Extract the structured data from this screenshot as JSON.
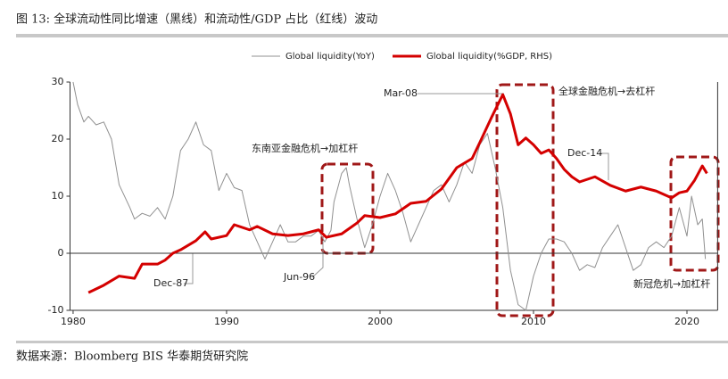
{
  "chart_data": {
    "type": "line",
    "title": "图 13:   全球流动性同比增速（黑线）和流动性/GDP 占比（红线）波动",
    "source": "数据来源：Bloomberg   BIS   华泰期货研究院",
    "xlim": [
      1979.8,
      2022
    ],
    "xticks": [
      1980,
      1990,
      2000,
      2010,
      2020
    ],
    "ylim": [
      -10,
      30
    ],
    "yticks": [
      -10,
      0,
      10,
      20,
      30
    ],
    "y2lim": [
      -10,
      30
    ],
    "series": [
      {
        "name": "Global liquidity(YoY)",
        "color": "#909090",
        "x": [
          1980,
          1980.3,
          1980.7,
          1981,
          1981.5,
          1982,
          1982.5,
          1983,
          1983.7,
          1984,
          1984.5,
          1985,
          1985.5,
          1986,
          1986.5,
          1987,
          1987.5,
          1988,
          1988.5,
          1989,
          1989.5,
          1990,
          1990.5,
          1991,
          1991.5,
          1992,
          1992.5,
          1993,
          1993.5,
          1994,
          1994.5,
          1995,
          1995.5,
          1996,
          1996.4,
          1996.8,
          1997,
          1997.5,
          1997.8,
          1998,
          1998.5,
          1999,
          1999.5,
          2000,
          2000.5,
          2001,
          2001.5,
          2002,
          2002.5,
          2003,
          2003.5,
          2004,
          2004.5,
          2005,
          2005.5,
          2006,
          2006.5,
          2007,
          2007.5,
          2008,
          2008.5,
          2009,
          2009.5,
          2010,
          2010.5,
          2011,
          2011.5,
          2012,
          2012.5,
          2013,
          2013.5,
          2014,
          2014.5,
          2015,
          2015.5,
          2016,
          2016.5,
          2017,
          2017.5,
          2018,
          2018.5,
          2019,
          2019.5,
          2020,
          2020.3,
          2020.7,
          2021,
          2021.2
        ],
        "values": [
          30,
          26,
          23,
          24,
          22.5,
          23,
          20,
          12,
          8,
          6,
          7,
          6.5,
          8,
          6,
          10,
          18,
          20,
          23,
          19,
          18,
          11,
          14,
          11.5,
          11,
          5,
          2,
          -1,
          2,
          5,
          2,
          2,
          3,
          3,
          4,
          2,
          4,
          9,
          14,
          15,
          12,
          6,
          1,
          5,
          10,
          14,
          11,
          7,
          2,
          5,
          8,
          11,
          12,
          9,
          12,
          16,
          14,
          19,
          21,
          15,
          8,
          -3,
          -9,
          -10,
          -4,
          0,
          2.5,
          2.5,
          2,
          0,
          -3,
          -2,
          -2.5,
          1,
          3,
          5,
          1,
          -3,
          -2,
          1,
          2,
          1,
          3,
          8,
          3,
          10,
          5,
          6,
          -1
        ]
      },
      {
        "name": "Global liquidity(%GDP, RHS)",
        "color": "#d40000",
        "axis": "y2",
        "x": [
          1981,
          1982,
          1983,
          1984,
          1984.5,
          1985.5,
          1986,
          1986.5,
          1987,
          1988,
          1988.6,
          1989,
          1990,
          1990.5,
          1991.5,
          1992,
          1993,
          1994,
          1995,
          1996,
          1996.5,
          1997.5,
          1998.5,
          1999,
          2000,
          2001,
          2002,
          2003,
          2004,
          2005,
          2006,
          2006.5,
          2007.3,
          2008,
          2008.5,
          2009,
          2009.5,
          2010,
          2010.5,
          2011,
          2011.5,
          2012,
          2012.5,
          2013,
          2014,
          2015,
          2016,
          2017,
          2018,
          2019,
          2019.5,
          2020,
          2020.5,
          2021,
          2021.3
        ],
        "values": [
          -6.9,
          -5.6,
          -4,
          -4.4,
          -1.9,
          -1.9,
          -1.2,
          0,
          0.6,
          2.2,
          3.75,
          2.5,
          3.1,
          5,
          4.1,
          4.7,
          3.4,
          3.1,
          3.4,
          4.1,
          2.8,
          3.4,
          5.3,
          6.6,
          6.25,
          6.9,
          8.75,
          9.1,
          11.25,
          15,
          16.6,
          19.4,
          24,
          27.8,
          24.4,
          19,
          20.2,
          19,
          17.5,
          18.1,
          16.6,
          14.7,
          13.4,
          12.5,
          13.4,
          11.9,
          10.9,
          11.6,
          10.9,
          9.7,
          10.6,
          10.9,
          12.8,
          15.3,
          14
        ]
      }
    ],
    "annotations": [
      "Mar-08",
      "全球金融危机→去杠杆",
      "东南亚金融危机→加杠杆",
      "Dec-14",
      "Dec-87",
      "Jun-96",
      "新冠危机→加杠杆"
    ]
  }
}
